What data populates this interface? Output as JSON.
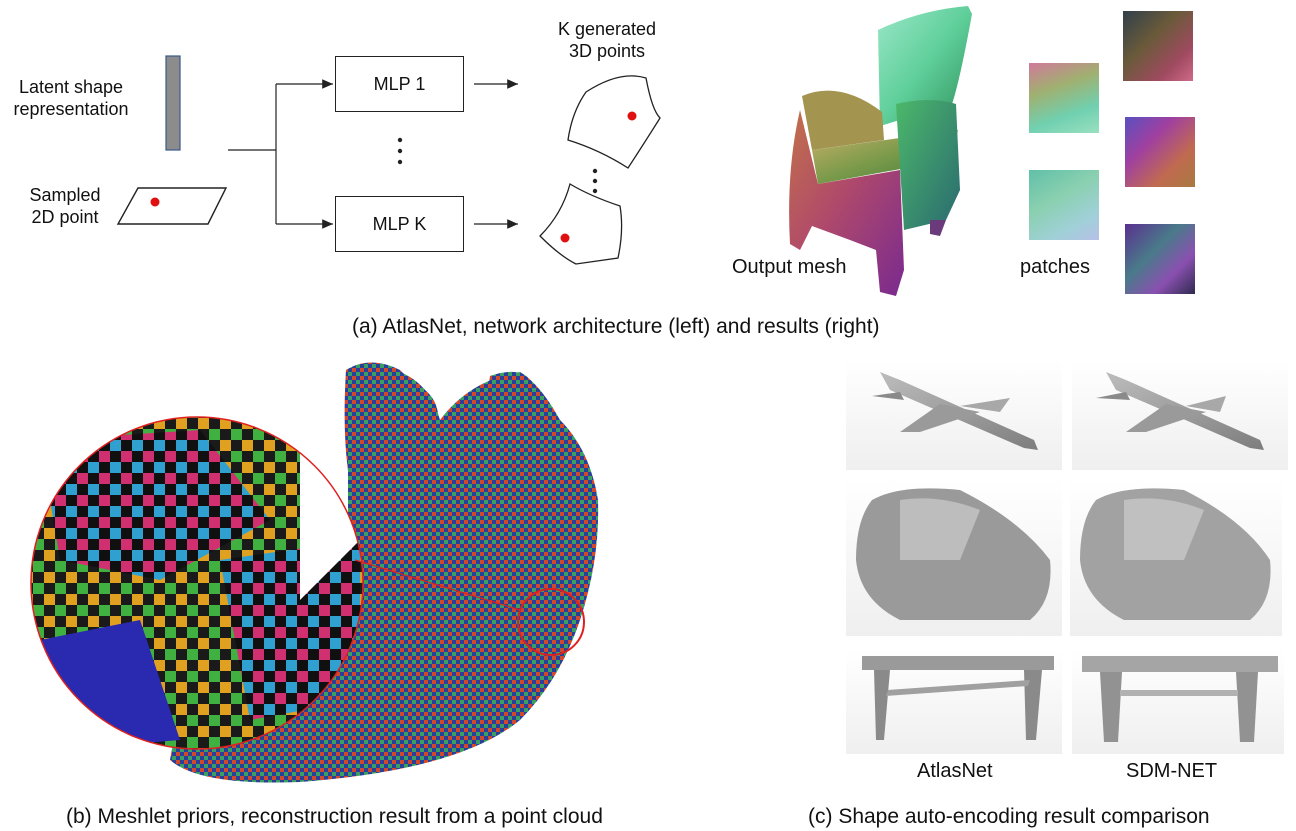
{
  "panel_a": {
    "latent_label": [
      "Latent shape",
      "representation"
    ],
    "sampled_label": [
      "Sampled",
      "2D point"
    ],
    "mlp_first": "MLP 1",
    "mlp_last": "MLP K",
    "generated_label": [
      "K generated",
      "3D points"
    ],
    "output_mesh_label": "Output mesh",
    "patches_label": "patches",
    "caption": "(a) AtlasNet, network architecture (left) and results (right)",
    "point_color": "#e01010"
  },
  "panel_b": {
    "caption": "(b) Meshlet priors, reconstruction result from a point cloud",
    "highlight_color": "#e02020"
  },
  "panel_c": {
    "method_left": "AtlasNet",
    "method_right": "SDM-NET",
    "caption": "(c) Shape auto-encoding result comparison"
  }
}
